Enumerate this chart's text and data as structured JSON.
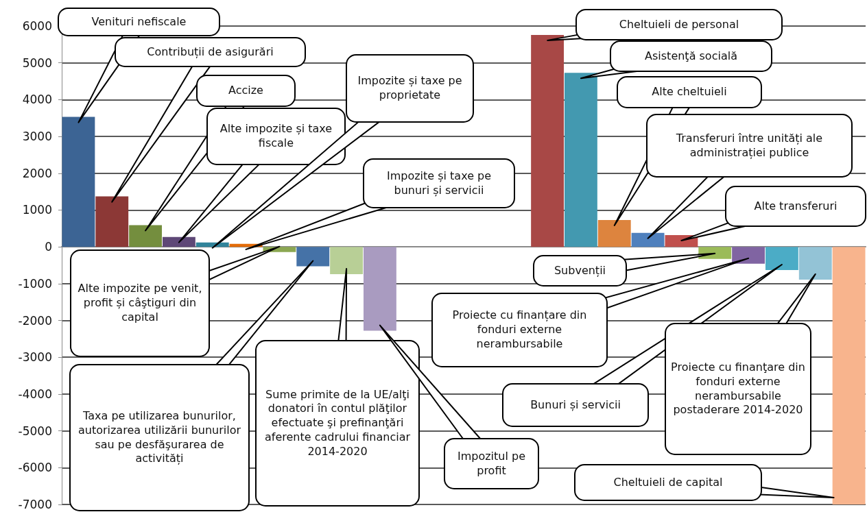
{
  "chart_data": {
    "type": "bar",
    "categories": [
      null,
      null,
      null,
      null,
      null,
      null,
      null,
      null,
      null,
      null,
      null,
      null,
      null,
      null,
      null,
      null,
      null,
      null,
      null,
      null,
      null,
      null,
      null,
      null
    ],
    "values": [
      3530,
      1370,
      590,
      270,
      120,
      80,
      -140,
      -530,
      -740,
      -2280,
      null,
      null,
      null,
      null,
      5760,
      4730,
      730,
      380,
      320,
      -330,
      -460,
      -630,
      -890,
      -7000
    ],
    "colors": [
      "#3c6494",
      "#8c3836",
      "#748e3e",
      "#5e4877",
      "#31849b",
      "#e36c09",
      "#8ba752",
      "#4572a7",
      "#b8cf96",
      "#a99bc0",
      null,
      null,
      null,
      null,
      "#a84846",
      "#4399b0",
      "#dd843e",
      "#4f80bd",
      "#c0504d",
      "#9bbb59",
      "#8064a2",
      "#4bacc6",
      "#93c3d6",
      "#f8b48d"
    ],
    "ylim": [
      -7000,
      6000
    ],
    "yticks": [
      -7000,
      -6000,
      -5000,
      -4000,
      -3000,
      -2000,
      -1000,
      0,
      1000,
      2000,
      3000,
      4000,
      5000,
      6000
    ],
    "grid": "y",
    "annotations": [
      "Venituri nefiscale",
      "Contribuții de asigurări",
      "Accize",
      "Alte impozite și taxe fiscale",
      "Impozite și taxe pe proprietate",
      "Impozite și taxe pe bunuri și servicii",
      "Alte impozite pe venit, profit și câştiguri din capital",
      "Taxa pe utilizarea bunurilor, autorizarea utilizării bunurilor sau pe desfăşurarea de activități",
      "Sume primite de la UE/alţi donatori în contul plăţilor efectuate şi prefinanţări aferente cadrului financiar 2014-2020",
      "Impozitul pe profit",
      "Cheltuieli de personal",
      "Asistenţă socială",
      "Alte cheltuieli",
      "Transferuri între unități ale administrației publice",
      "Alte transferuri",
      "Subvenții",
      "Proiecte cu finanțare din fonduri externe nerambursabile",
      "Bunuri și servicii",
      "Proiecte cu finanţare din fonduri externe nerambursabile postaderare 2014-2020",
      "Cheltuieli de capital"
    ]
  }
}
